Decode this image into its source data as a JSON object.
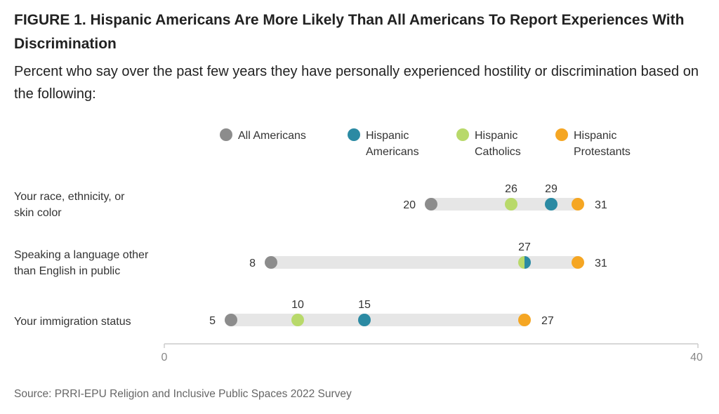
{
  "title": "FIGURE 1.  Hispanic Americans Are More Likely Than All Americans To Report Experiences With Discrimination",
  "subtitle": "Percent who say over the past few years they have personally experienced hostility or discrimination based on the following:",
  "source": "Source: PRRI-EPU Religion and Inclusive Public Spaces 2022 Survey",
  "chart_data": {
    "type": "dot",
    "title": "Hispanic Americans Are More Likely Than All Americans To Report Experiences With Discrimination",
    "xlim": [
      0,
      40
    ],
    "ticks": [
      "0",
      "40"
    ],
    "legend_position": "top",
    "series": [
      {
        "name": "All Americans",
        "line1": "All Americans",
        "line2": "",
        "color": "#8c8c8c",
        "values": [
          20,
          8,
          5
        ]
      },
      {
        "name": "Hispanic Americans",
        "line1": "Hispanic",
        "line2": "Americans",
        "color": "#2b8aa3",
        "values": [
          29,
          27,
          15
        ]
      },
      {
        "name": "Hispanic Catholics",
        "line1": "Hispanic",
        "line2": "Catholics",
        "color": "#b8d96a",
        "values": [
          26,
          27,
          10
        ]
      },
      {
        "name": "Hispanic Protestants",
        "line1": "Hispanic",
        "line2": "Protestants",
        "color": "#f5a623",
        "values": [
          31,
          31,
          27
        ]
      }
    ],
    "categories": [
      {
        "line1": "Your race, ethnicity, or",
        "line2": "skin color"
      },
      {
        "line1": "Speaking a language other",
        "line2": "than English in public"
      },
      {
        "line1": "Your immigration status",
        "line2": ""
      }
    ],
    "data_labels": [
      [
        {
          "text": "20",
          "series": 0,
          "pos": "left"
        },
        {
          "text": "26",
          "series": 2,
          "pos": "above"
        },
        {
          "text": "29",
          "series": 1,
          "pos": "above"
        },
        {
          "text": "31",
          "series": 3,
          "pos": "right"
        }
      ],
      [
        {
          "text": "8",
          "series": 0,
          "pos": "left"
        },
        {
          "text": "27",
          "series": 1,
          "pos": "above"
        },
        {
          "text": "31",
          "series": 3,
          "pos": "right"
        }
      ],
      [
        {
          "text": "5",
          "series": 0,
          "pos": "left"
        },
        {
          "text": "10",
          "series": 2,
          "pos": "above"
        },
        {
          "text": "15",
          "series": 1,
          "pos": "above"
        },
        {
          "text": "27",
          "series": 3,
          "pos": "right"
        }
      ]
    ]
  }
}
